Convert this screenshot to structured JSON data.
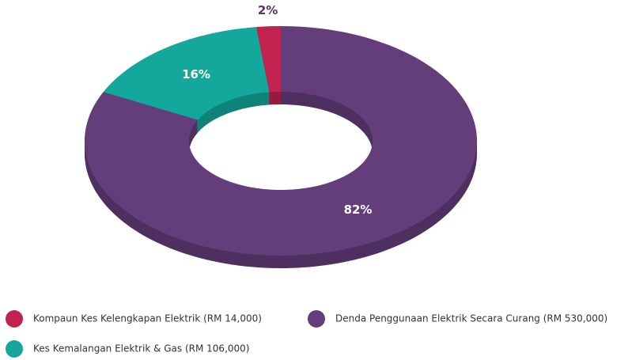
{
  "chart_data": {
    "type": "pie",
    "donut": true,
    "categories": [
      "Kompaun Kes Kelengkapan Elektrik (RM 14,000)",
      "Kes Kemalangan Elektrik & Gas (RM 106,000)",
      "Denda Penggunaan Elektrik Secara Curang (RM 530,000)"
    ],
    "values": [
      2,
      16,
      82
    ],
    "value_labels": [
      "2%",
      "16%",
      "82%"
    ],
    "colors": [
      "#c2224f",
      "#13a89b",
      "#643d7b"
    ]
  }
}
